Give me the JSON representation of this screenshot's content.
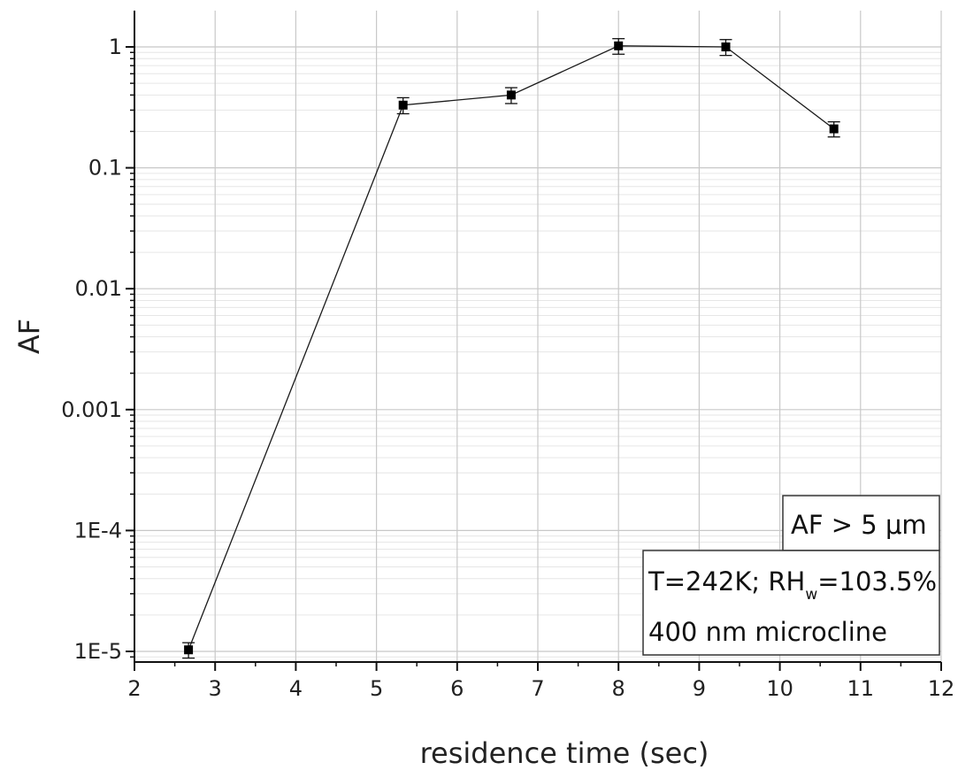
{
  "chart_data": {
    "type": "line",
    "xlabel": "residence time (sec)",
    "ylabel": "AF",
    "xlim": [
      2,
      12
    ],
    "ylim": [
      8e-06,
      1.6
    ],
    "y_scale": "log",
    "grid": true,
    "x_ticks": [
      2,
      3,
      4,
      5,
      6,
      7,
      8,
      9,
      10,
      11,
      12
    ],
    "x_tick_labels": [
      "2",
      "3",
      "4",
      "5",
      "6",
      "7",
      "8",
      "9",
      "10",
      "11",
      "12"
    ],
    "y_ticks": [
      1e-05,
      0.0001,
      0.001,
      0.01,
      0.1,
      1
    ],
    "y_tick_labels": [
      "1E-5",
      "1E-4",
      "0.001",
      "0.01",
      "0.1",
      "1"
    ],
    "series": [
      {
        "x": [
          2.67,
          5.33,
          6.67,
          8.0,
          9.33,
          10.67
        ],
        "y": [
          1.03e-05,
          0.33,
          0.4,
          1.02,
          1.0,
          0.21
        ],
        "err_low": [
          8.8e-06,
          0.28,
          0.34,
          0.87,
          0.85,
          0.18
        ],
        "err_high": [
          1.18e-05,
          0.38,
          0.46,
          1.17,
          1.15,
          0.24
        ]
      }
    ],
    "annotations": {
      "label_main": "AF > 5 ",
      "label_unit": "μm",
      "cond_prefix": "T=242K; RH",
      "cond_sub": "w",
      "cond_suffix": "=103.5%",
      "material": "400 nm microcline"
    },
    "colors": {
      "line": "#1a1a1a",
      "marker": "#000000",
      "grid": "#c8c8c8",
      "minor_grid": "#e6e6e6"
    }
  }
}
